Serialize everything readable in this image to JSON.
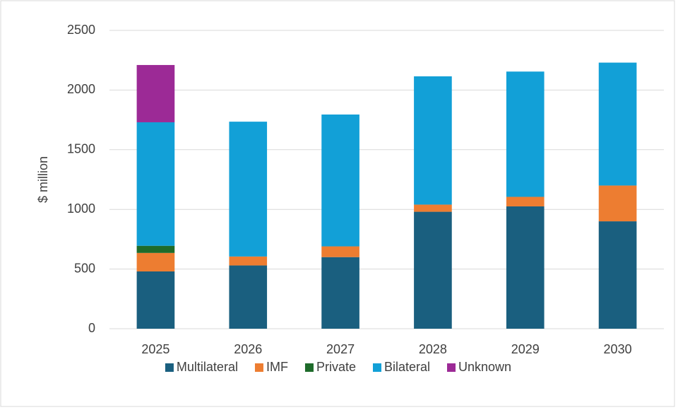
{
  "chart_data": {
    "type": "stacked_bar",
    "y_label": "$ million",
    "categories": [
      "2025",
      "2026",
      "2027",
      "2028",
      "2029",
      "2030"
    ],
    "series": [
      {
        "name": "Multilateral",
        "color": "#1a5f7f",
        "values": [
          480,
          530,
          600,
          980,
          1025,
          900
        ]
      },
      {
        "name": "IMF",
        "color": "#ed7d31",
        "values": [
          155,
          75,
          90,
          60,
          80,
          300
        ]
      },
      {
        "name": "Private",
        "color": "#1e6b2a",
        "values": [
          60,
          0,
          0,
          0,
          0,
          0
        ]
      },
      {
        "name": "Bilateral",
        "color": "#12a0d7",
        "values": [
          1035,
          1130,
          1105,
          1075,
          1050,
          1030
        ]
      },
      {
        "name": "Unknown",
        "color": "#9c2a96",
        "values": [
          480,
          0,
          0,
          0,
          0,
          0
        ]
      }
    ],
    "ylim": [
      0,
      2500
    ],
    "yticks": [
      0,
      500,
      1000,
      1500,
      2000,
      2500
    ],
    "grid": true,
    "legend": "bottom"
  }
}
